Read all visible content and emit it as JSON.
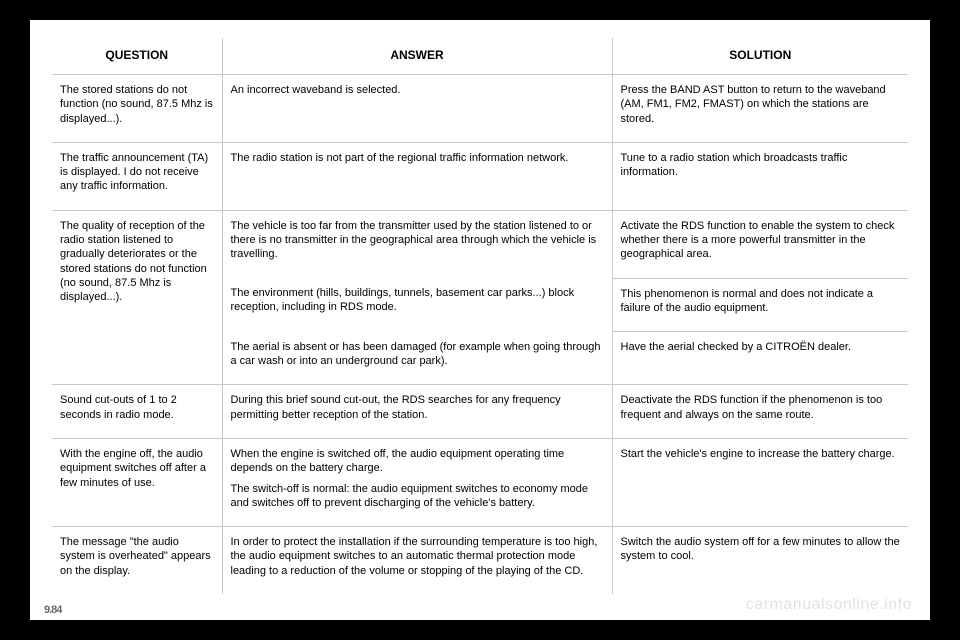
{
  "columns": {
    "q": "QUESTION",
    "a": "ANSWER",
    "s": "SOLUTION"
  },
  "rows": [
    {
      "q": "The stored stations do not function (no sound, 87.5 Mhz is displayed...).",
      "items": [
        {
          "a": "An incorrect waveband is selected.",
          "s": "Press the BAND AST button to return to the waveband (AM, FM1, FM2, FMAST) on which the stations are stored."
        }
      ]
    },
    {
      "q": "The traffic announcement (TA) is displayed. I do not receive any traffic information.",
      "items": [
        {
          "a": "The radio station is not part of the regional traffic information network.",
          "s": "Tune to a radio station which broadcasts traffic information."
        }
      ]
    },
    {
      "q": "The quality of reception of the radio station listened to gradually deteriorates or the stored stations do not function (no sound, 87.5 Mhz is displayed...).",
      "items": [
        {
          "a": "The vehicle is too far from the transmitter used by the station listened to or there is no transmitter in the geographical area through which the vehicle is travelling.",
          "s": "Activate the RDS function to enable the system to check whether there is a more powerful transmitter in the geographical area."
        },
        {
          "a": "The environment (hills, buildings, tunnels, basement car parks...) block reception, including in RDS mode.",
          "s": "This phenomenon is normal and does not indicate a failure of the audio equipment."
        },
        {
          "a": "The aerial is absent or has been damaged (for example when going through a car wash or into an underground car park).",
          "s": "Have the aerial checked by a CITROËN dealer."
        }
      ]
    },
    {
      "q": "Sound cut-outs of 1 to 2 seconds in radio mode.",
      "items": [
        {
          "a": "During this brief sound cut-out, the RDS searches for any frequency permitting better reception of the station.",
          "s": "Deactivate the RDS function if the phenomenon is too frequent and always on the same route."
        }
      ]
    },
    {
      "q": "With the engine off, the audio equipment switches off after a few minutes of use.",
      "items": [
        {
          "a": "When the engine is switched off, the audio equipment operating time depends on the battery charge.",
          "a2": "The switch-off is normal: the audio equipment switches to economy mode and switches off to prevent discharging of the vehicle's battery.",
          "s": "Start the vehicle's engine to increase the battery charge."
        }
      ]
    },
    {
      "q": "The message \"the audio system is overheated\" appears on the display.",
      "items": [
        {
          "a": "In order to protect the installation if the surrounding temperature is too high, the audio equipment switches to an automatic thermal protection mode leading to a reduction of the volume or stopping of the playing of the CD.",
          "s": "Switch the audio system off for a few minutes to allow the system to cool."
        }
      ]
    }
  ],
  "watermark": "carmanualsonline.info",
  "page_no": "9.84"
}
